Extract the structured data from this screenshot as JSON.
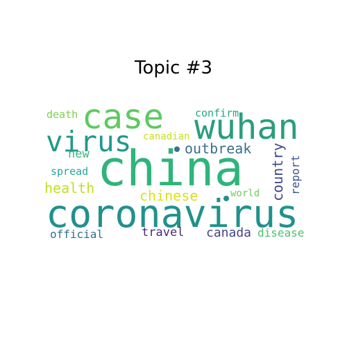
{
  "title": "Topic #3",
  "colors": {
    "background": "#ffffff",
    "title": "#000000"
  },
  "words": {
    "china": {
      "text": "china",
      "color": "#2fb47c"
    },
    "coronavirus": {
      "text": "coronavirus",
      "color": "#21918c"
    },
    "case": {
      "text": "case",
      "color": "#5ec962"
    },
    "wuhan": {
      "text": "wuhan",
      "color": "#2a9d7f"
    },
    "virus": {
      "text": "virus",
      "color": "#1f9a8a"
    },
    "outbreak": {
      "text": "outbreak",
      "color": "#3b6f8e"
    },
    "country": {
      "text": "country",
      "color": "#3e4989"
    },
    "chinese": {
      "text": "chinese",
      "color": "#d8e219"
    },
    "health": {
      "text": "health",
      "color": "#c2df23"
    },
    "report": {
      "text": "report",
      "color": "#3b528b"
    },
    "travel": {
      "text": "travel",
      "color": "#482878"
    },
    "canada": {
      "text": "canada",
      "color": "#414487"
    },
    "official": {
      "text": "official",
      "color": "#2c728e"
    },
    "disease": {
      "text": "disease",
      "color": "#4ac16d"
    },
    "spread": {
      "text": "spread",
      "color": "#26a69a"
    },
    "new": {
      "text": "new",
      "color": "#35b779"
    },
    "confirm": {
      "text": "confirm",
      "color": "#22a884"
    },
    "death": {
      "text": "death",
      "color": "#7ad151"
    },
    "canadian": {
      "text": "canadian",
      "color": "#c8e020"
    },
    "world": {
      "text": "world",
      "color": "#6ece58"
    }
  }
}
